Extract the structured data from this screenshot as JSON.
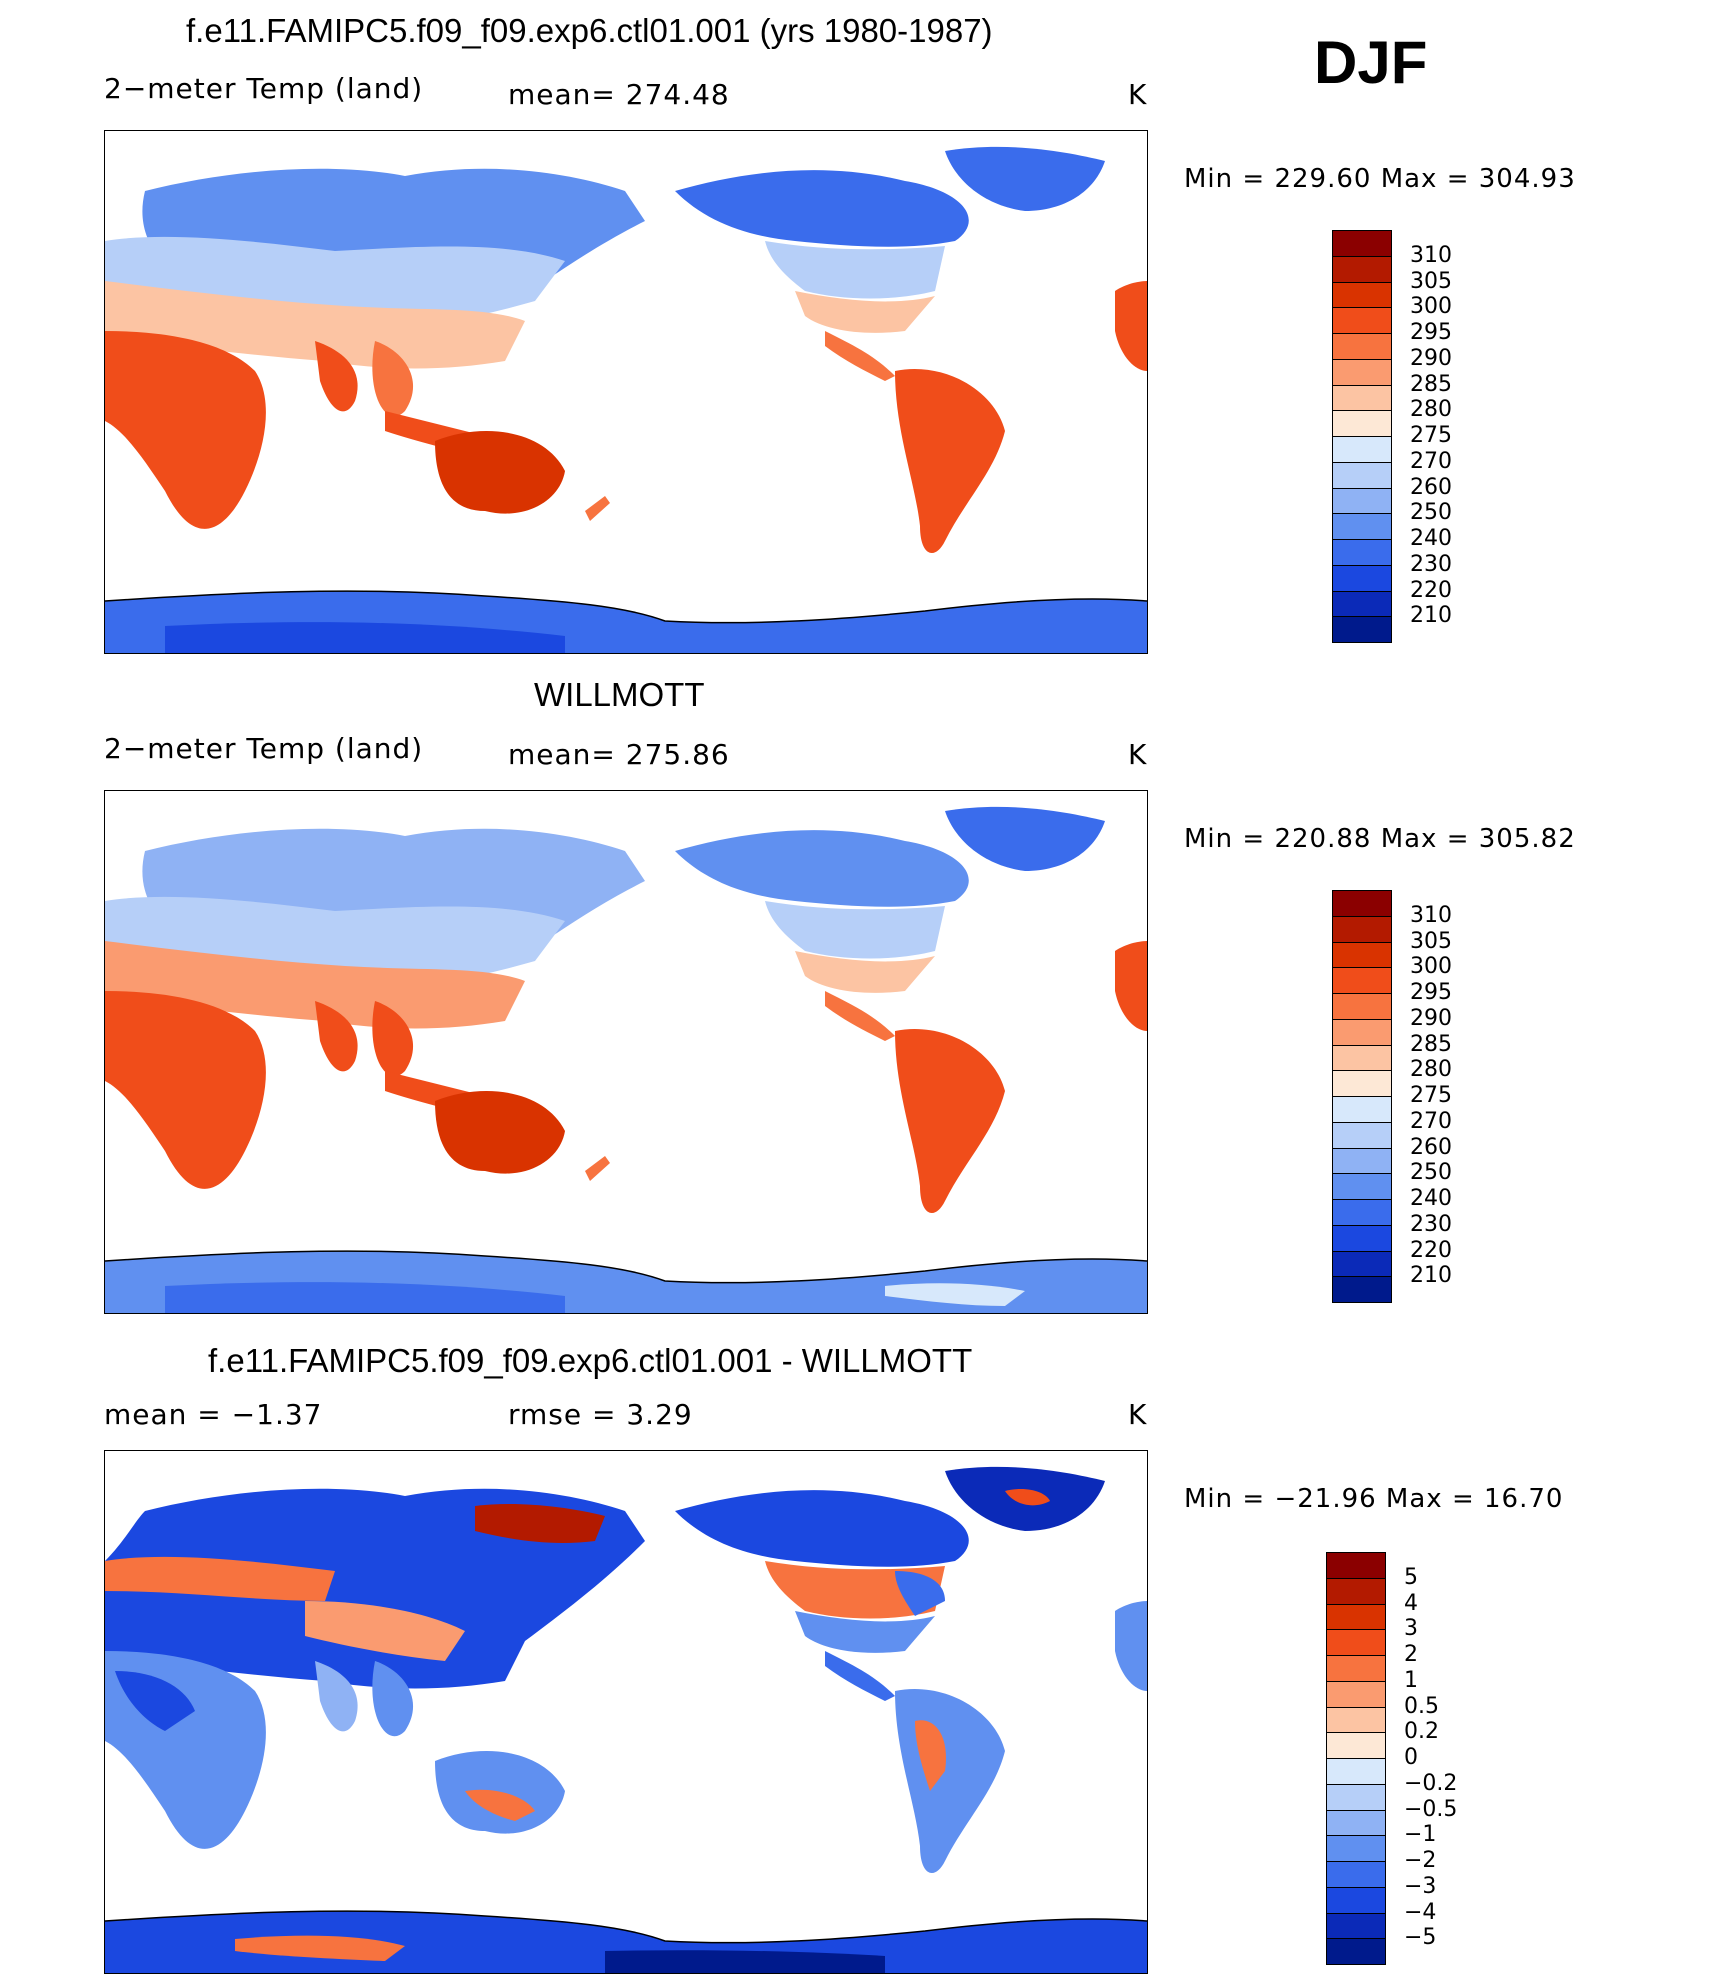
{
  "season": "DJF",
  "panels": [
    {
      "id": "model",
      "title": "f.e11.FAMIPC5.f09_f09.exp6.ctl01.001 (yrs 1980-1987)",
      "left_label": "2−meter Temp (land)",
      "center_label": "mean=  274.48",
      "units": "K",
      "minmax": "Min  =  229.60  Max  =  304.93"
    },
    {
      "id": "obs",
      "title": "WILLMOTT",
      "left_label": "2−meter Temp (land)",
      "center_label": "mean=  275.86",
      "units": "K",
      "minmax": "Min  =  220.88  Max  =  305.82"
    },
    {
      "id": "diff",
      "title": "f.e11.FAMIPC5.f09_f09.exp6.ctl01.001 - WILLMOTT",
      "left_label": "mean  =    −1.37",
      "center_label": "rmse  =      3.29",
      "units": "K",
      "minmax": "Min  =  −21.96  Max  =    16.70"
    }
  ],
  "colorbars": {
    "temp": {
      "labels": [
        "310",
        "305",
        "300",
        "295",
        "290",
        "285",
        "280",
        "275",
        "270",
        "260",
        "250",
        "240",
        "230",
        "220",
        "210"
      ],
      "colors": [
        "#8b0000",
        "#b31a00",
        "#d93300",
        "#f04d1a",
        "#f7733f",
        "#fa9b70",
        "#fcc4a3",
        "#fde8d6",
        "#d7e8fb",
        "#b6cff8",
        "#8fb2f4",
        "#6090f0",
        "#3a6cec",
        "#1b48e0",
        "#0b2ab8",
        "#001a8c"
      ]
    },
    "diff": {
      "labels": [
        "5",
        "4",
        "3",
        "2",
        "1",
        "0.5",
        "0.2",
        "0",
        "−0.2",
        "−0.5",
        "−1",
        "−2",
        "−3",
        "−4",
        "−5"
      ],
      "colors": [
        "#8b0000",
        "#b31a00",
        "#d93300",
        "#f04d1a",
        "#f7733f",
        "#fa9b70",
        "#fcc4a3",
        "#fde8d6",
        "#d7e8fb",
        "#b6cff8",
        "#8fb2f4",
        "#6090f0",
        "#3a6cec",
        "#1b48e0",
        "#0b2ab8",
        "#001a8c"
      ]
    }
  }
}
